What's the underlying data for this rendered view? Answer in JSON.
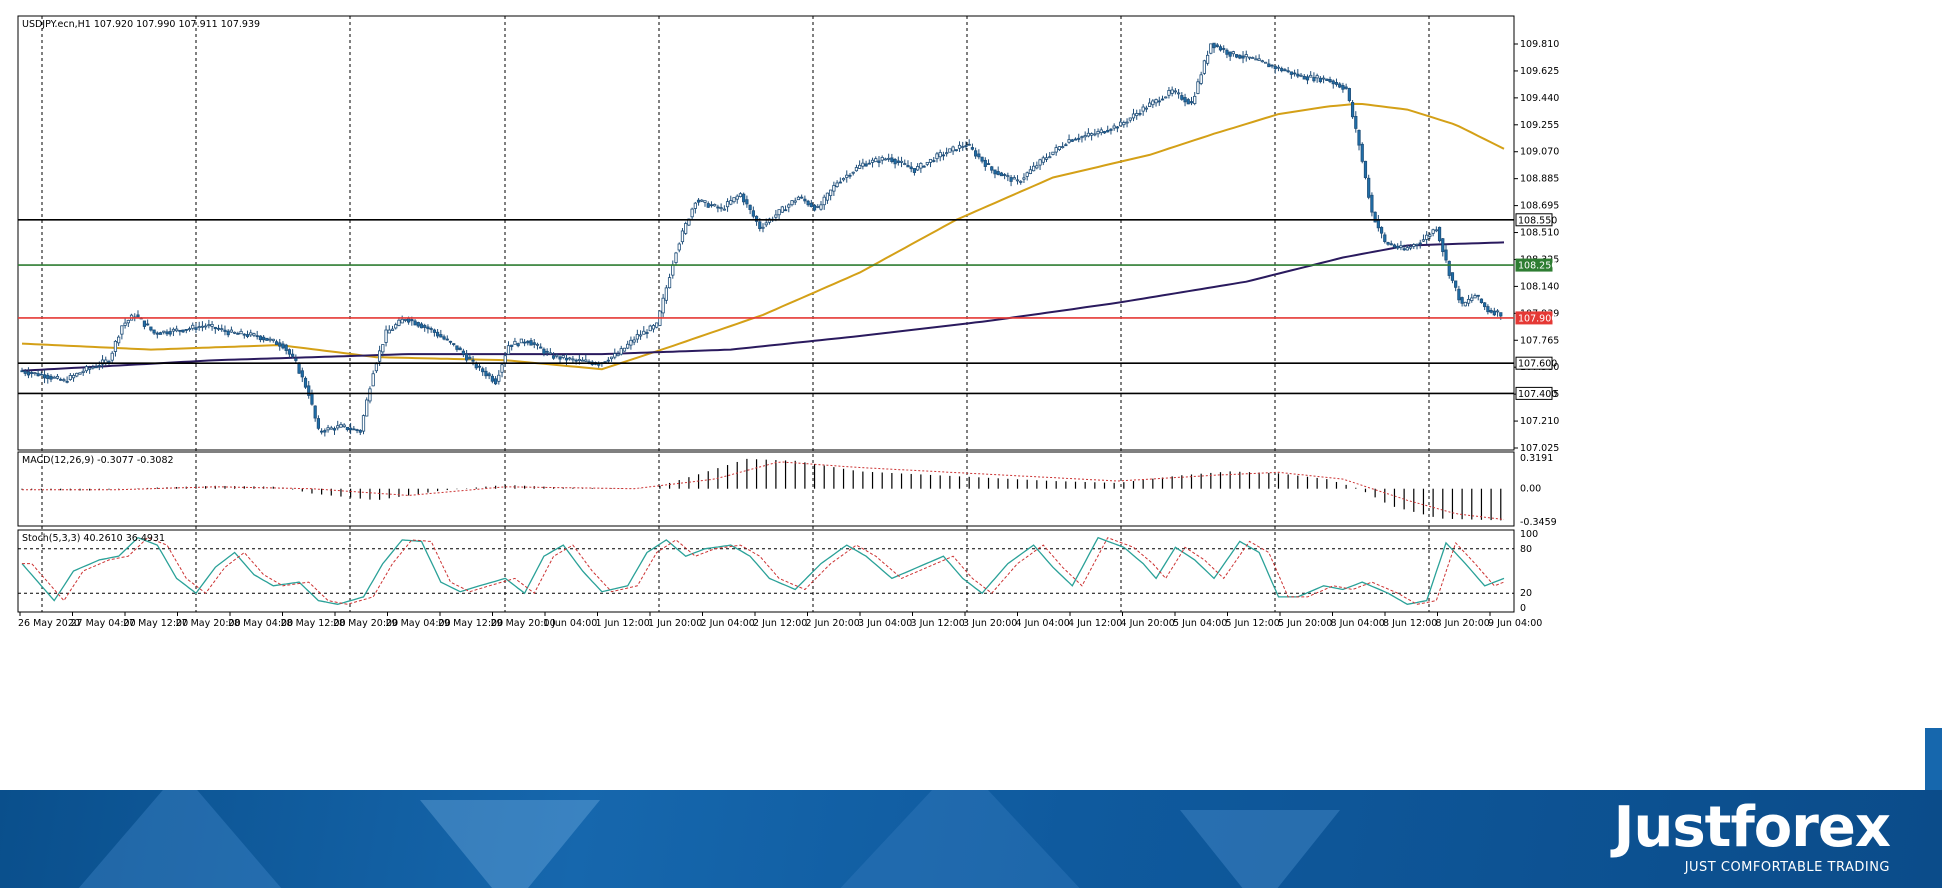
{
  "header": {
    "symbol_info": "USDJPY.ecn,H1  107.920 107.990 107.911 107.939"
  },
  "price_axis": {
    "ticks": [
      "109.810",
      "109.625",
      "109.440",
      "109.255",
      "109.070",
      "108.885",
      "108.695",
      "108.510",
      "108.325",
      "108.140",
      "107.939",
      "107.765",
      "107.580",
      "107.395",
      "107.210",
      "107.025"
    ]
  },
  "levels": [
    {
      "label": "108.550",
      "price": 108.55,
      "color": "#000000",
      "label_bg": "#ffffff",
      "label_fg": "#000000"
    },
    {
      "label": "108.250",
      "price": 108.25,
      "color": "#2e7d32",
      "label_bg": "#2e7d32",
      "label_fg": "#ffffff"
    },
    {
      "label": "107.900",
      "price": 107.9,
      "color": "#e53935",
      "label_bg": "#e53935",
      "label_fg": "#ffffff"
    },
    {
      "label": "107.600",
      "price": 107.6,
      "color": "#000000",
      "label_bg": "#ffffff",
      "label_fg": "#000000"
    },
    {
      "label": "107.400",
      "price": 107.4,
      "color": "#000000",
      "label_bg": "#ffffff",
      "label_fg": "#000000"
    }
  ],
  "macd": {
    "label": "MACD(12,26,9) -0.3077 -0.3082",
    "ticks": [
      "0.3191",
      "0.00",
      "-0.3459"
    ]
  },
  "stoch": {
    "label": "Stoch(5,3,3) 40.2610 36.4931",
    "ticks": [
      "100",
      "80",
      "20",
      "0"
    ]
  },
  "time_axis": {
    "labels": [
      "26 May 2020",
      "27 May 04:00",
      "27 May 12:00",
      "27 May 20:00",
      "28 May 04:00",
      "28 May 12:00",
      "28 May 20:00",
      "29 May 04:00",
      "29 May 12:00",
      "29 May 20:00",
      "1 Jun 04:00",
      "1 Jun 12:00",
      "1 Jun 20:00",
      "2 Jun 04:00",
      "2 Jun 12:00",
      "2 Jun 20:00",
      "3 Jun 04:00",
      "3 Jun 12:00",
      "3 Jun 20:00",
      "4 Jun 04:00",
      "4 Jun 12:00",
      "4 Jun 20:00",
      "5 Jun 04:00",
      "5 Jun 12:00",
      "5 Jun 20:00",
      "8 Jun 04:00",
      "8 Jun 12:00",
      "8 Jun 20:00",
      "9 Jun 04:00"
    ]
  },
  "colors": {
    "bull_candle": "#ffffff",
    "bear_candle": "#1f6ea8",
    "ma_fast": "#d4a017",
    "ma_slow": "#2a1a5e",
    "grid": "#000000",
    "macd_signal": "#cc3333",
    "stoch_main": "#2aa198",
    "stoch_signal": "#cc3333"
  },
  "chart_data": {
    "type": "candlestick",
    "title": "USDJPY.ecn,H1",
    "ylim": [
      107.025,
      109.9
    ],
    "anchors": [
      [
        0,
        107.55
      ],
      [
        8,
        107.52
      ],
      [
        14,
        107.48
      ],
      [
        20,
        107.55
      ],
      [
        28,
        107.62
      ],
      [
        32,
        107.85
      ],
      [
        36,
        107.92
      ],
      [
        42,
        107.8
      ],
      [
        50,
        107.82
      ],
      [
        58,
        107.85
      ],
      [
        66,
        107.8
      ],
      [
        74,
        107.78
      ],
      [
        82,
        107.72
      ],
      [
        86,
        107.6
      ],
      [
        90,
        107.4
      ],
      [
        93,
        107.15
      ],
      [
        100,
        107.18
      ],
      [
        106,
        107.15
      ],
      [
        110,
        107.55
      ],
      [
        114,
        107.8
      ],
      [
        120,
        107.9
      ],
      [
        128,
        107.82
      ],
      [
        136,
        107.7
      ],
      [
        142,
        107.58
      ],
      [
        148,
        107.48
      ],
      [
        152,
        107.72
      ],
      [
        158,
        107.75
      ],
      [
        165,
        107.65
      ],
      [
        172,
        107.62
      ],
      [
        180,
        107.6
      ],
      [
        186,
        107.66
      ],
      [
        192,
        107.78
      ],
      [
        198,
        107.85
      ],
      [
        204,
        108.35
      ],
      [
        210,
        108.68
      ],
      [
        218,
        108.62
      ],
      [
        224,
        108.72
      ],
      [
        230,
        108.5
      ],
      [
        236,
        108.6
      ],
      [
        242,
        108.7
      ],
      [
        248,
        108.62
      ],
      [
        254,
        108.8
      ],
      [
        262,
        108.92
      ],
      [
        270,
        108.96
      ],
      [
        278,
        108.88
      ],
      [
        286,
        108.98
      ],
      [
        294,
        109.05
      ],
      [
        302,
        108.88
      ],
      [
        310,
        108.8
      ],
      [
        318,
        108.95
      ],
      [
        326,
        109.08
      ],
      [
        334,
        109.12
      ],
      [
        342,
        109.18
      ],
      [
        350,
        109.3
      ],
      [
        358,
        109.4
      ],
      [
        364,
        109.32
      ],
      [
        370,
        109.72
      ],
      [
        376,
        109.65
      ],
      [
        382,
        109.62
      ],
      [
        390,
        109.56
      ],
      [
        398,
        109.5
      ],
      [
        406,
        109.48
      ],
      [
        412,
        109.42
      ],
      [
        416,
        109.05
      ],
      [
        420,
        108.6
      ],
      [
        424,
        108.4
      ],
      [
        430,
        108.35
      ],
      [
        436,
        108.42
      ],
      [
        440,
        108.5
      ],
      [
        444,
        108.2
      ],
      [
        448,
        107.98
      ],
      [
        452,
        108.05
      ],
      [
        456,
        107.95
      ],
      [
        460,
        107.93
      ]
    ],
    "ma_fast_series": [
      [
        0,
        107.73
      ],
      [
        40,
        107.69
      ],
      [
        80,
        107.72
      ],
      [
        110,
        107.64
      ],
      [
        150,
        107.62
      ],
      [
        180,
        107.56
      ],
      [
        200,
        107.7
      ],
      [
        230,
        107.92
      ],
      [
        260,
        108.2
      ],
      [
        290,
        108.55
      ],
      [
        320,
        108.83
      ],
      [
        350,
        108.98
      ],
      [
        370,
        109.12
      ],
      [
        390,
        109.25
      ],
      [
        405,
        109.3
      ],
      [
        415,
        109.32
      ],
      [
        430,
        109.28
      ],
      [
        445,
        109.18
      ],
      [
        460,
        109.02
      ]
    ],
    "ma_slow_series": [
      [
        0,
        107.55
      ],
      [
        60,
        107.62
      ],
      [
        120,
        107.66
      ],
      [
        180,
        107.66
      ],
      [
        220,
        107.69
      ],
      [
        260,
        107.78
      ],
      [
        300,
        107.88
      ],
      [
        340,
        108.0
      ],
      [
        380,
        108.14
      ],
      [
        410,
        108.3
      ],
      [
        430,
        108.38
      ],
      [
        460,
        108.4
      ]
    ],
    "macd_series": [
      [
        0,
        -0.01
      ],
      [
        20,
        -0.02
      ],
      [
        40,
        0.01
      ],
      [
        60,
        0.03
      ],
      [
        80,
        0.02
      ],
      [
        90,
        -0.05
      ],
      [
        110,
        -0.12
      ],
      [
        130,
        -0.02
      ],
      [
        150,
        0.04
      ],
      [
        170,
        0.01
      ],
      [
        195,
        0.0
      ],
      [
        210,
        0.15
      ],
      [
        225,
        0.31
      ],
      [
        240,
        0.29
      ],
      [
        260,
        0.18
      ],
      [
        290,
        0.13
      ],
      [
        320,
        0.08
      ],
      [
        340,
        0.06
      ],
      [
        360,
        0.14
      ],
      [
        375,
        0.18
      ],
      [
        390,
        0.16
      ],
      [
        405,
        0.1
      ],
      [
        415,
        0.0
      ],
      [
        425,
        -0.18
      ],
      [
        440,
        -0.31
      ],
      [
        460,
        -0.33
      ]
    ],
    "macd_signal_series": [
      [
        0,
        -0.01
      ],
      [
        30,
        -0.01
      ],
      [
        60,
        0.02
      ],
      [
        90,
        0.0
      ],
      [
        120,
        -0.07
      ],
      [
        150,
        0.02
      ],
      [
        190,
        0.0
      ],
      [
        215,
        0.1
      ],
      [
        235,
        0.28
      ],
      [
        260,
        0.22
      ],
      [
        300,
        0.15
      ],
      [
        340,
        0.08
      ],
      [
        370,
        0.14
      ],
      [
        390,
        0.17
      ],
      [
        410,
        0.1
      ],
      [
        430,
        -0.12
      ],
      [
        445,
        -0.26
      ],
      [
        460,
        -0.32
      ]
    ],
    "stoch_series": [
      [
        0,
        60
      ],
      [
        6,
        30
      ],
      [
        10,
        10
      ],
      [
        16,
        50
      ],
      [
        24,
        65
      ],
      [
        30,
        70
      ],
      [
        36,
        95
      ],
      [
        42,
        85
      ],
      [
        48,
        40
      ],
      [
        54,
        20
      ],
      [
        60,
        55
      ],
      [
        66,
        75
      ],
      [
        72,
        45
      ],
      [
        78,
        30
      ],
      [
        86,
        35
      ],
      [
        92,
        10
      ],
      [
        98,
        5
      ],
      [
        106,
        15
      ],
      [
        112,
        60
      ],
      [
        118,
        92
      ],
      [
        124,
        90
      ],
      [
        130,
        35
      ],
      [
        136,
        22
      ],
      [
        142,
        30
      ],
      [
        150,
        40
      ],
      [
        156,
        20
      ],
      [
        162,
        70
      ],
      [
        168,
        85
      ],
      [
        174,
        50
      ],
      [
        180,
        22
      ],
      [
        188,
        30
      ],
      [
        194,
        75
      ],
      [
        200,
        92
      ],
      [
        206,
        70
      ],
      [
        212,
        80
      ],
      [
        220,
        85
      ],
      [
        226,
        70
      ],
      [
        232,
        40
      ],
      [
        240,
        25
      ],
      [
        248,
        60
      ],
      [
        256,
        85
      ],
      [
        262,
        70
      ],
      [
        270,
        40
      ],
      [
        278,
        55
      ],
      [
        286,
        70
      ],
      [
        292,
        40
      ],
      [
        298,
        20
      ],
      [
        306,
        60
      ],
      [
        314,
        85
      ],
      [
        320,
        55
      ],
      [
        326,
        30
      ],
      [
        334,
        95
      ],
      [
        342,
        82
      ],
      [
        348,
        60
      ],
      [
        352,
        40
      ],
      [
        358,
        82
      ],
      [
        364,
        65
      ],
      [
        370,
        40
      ],
      [
        378,
        90
      ],
      [
        384,
        75
      ],
      [
        390,
        15
      ],
      [
        396,
        15
      ],
      [
        404,
        30
      ],
      [
        410,
        25
      ],
      [
        416,
        35
      ],
      [
        424,
        20
      ],
      [
        430,
        5
      ],
      [
        436,
        10
      ],
      [
        442,
        88
      ],
      [
        448,
        60
      ],
      [
        454,
        30
      ],
      [
        460,
        40
      ]
    ]
  }
}
